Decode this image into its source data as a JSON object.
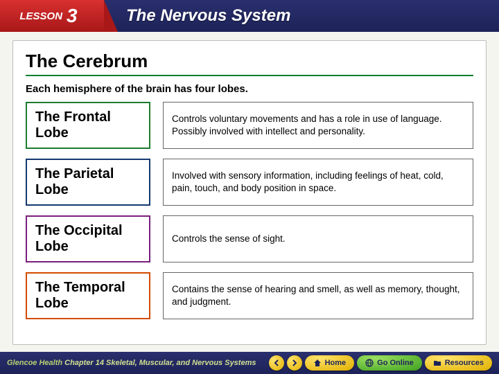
{
  "header": {
    "lesson_label": "LESSON",
    "lesson_number": "3",
    "title": "The Nervous System",
    "bg_color": "#1d2358",
    "tab_bg": "#b81e1e"
  },
  "section": {
    "title": "The Cerebrum",
    "intro": "Each hemisphere of the brain has four lobes.",
    "rule_color": "#0a7f2e"
  },
  "lobes": [
    {
      "name": "The Frontal Lobe",
      "desc": "Controls voluntary movements and has a role in use of language. Possibly involved with intellect and personality.",
      "border": "#1e7b2f"
    },
    {
      "name": "The Parietal Lobe",
      "desc": "Involved with sensory information, including feelings of heat, cold, pain, touch, and body position in space.",
      "border": "#12396e"
    },
    {
      "name": "The Occipital Lobe",
      "desc": "Controls the sense of sight.",
      "border": "#7a1d7d"
    },
    {
      "name": "The Temporal Lobe",
      "desc": "Contains the sense of hearing and smell, as well as memory, thought, and judgment.",
      "border": "#d44a00"
    }
  ],
  "footer": {
    "brand": "Glencoe Health",
    "chapter": "Chapter 14 Skeletal, Muscular, and Nervous Systems",
    "home": "Home",
    "go_online": "Go Online",
    "resources": "Resources"
  }
}
